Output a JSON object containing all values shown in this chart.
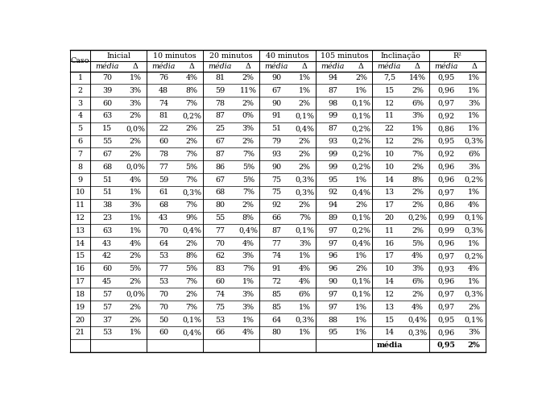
{
  "rows": [
    [
      "1",
      "70",
      "1%",
      "76",
      "4%",
      "81",
      "2%",
      "90",
      "1%",
      "94",
      "2%",
      "7,5",
      "14%",
      "0,95",
      "1%"
    ],
    [
      "2",
      "39",
      "3%",
      "48",
      "8%",
      "59",
      "11%",
      "67",
      "1%",
      "87",
      "1%",
      "15",
      "2%",
      "0,96",
      "1%"
    ],
    [
      "3",
      "60",
      "3%",
      "74",
      "7%",
      "78",
      "2%",
      "90",
      "2%",
      "98",
      "0,1%",
      "12",
      "6%",
      "0,97",
      "3%"
    ],
    [
      "4",
      "63",
      "2%",
      "81",
      "0,2%",
      "87",
      "0%",
      "91",
      "0,1%",
      "99",
      "0,1%",
      "11",
      "3%",
      "0,92",
      "1%"
    ],
    [
      "5",
      "15",
      "0,0%",
      "22",
      "2%",
      "25",
      "3%",
      "51",
      "0,4%",
      "87",
      "0,2%",
      "22",
      "1%",
      "0,86",
      "1%"
    ],
    [
      "6",
      "55",
      "2%",
      "60",
      "2%",
      "67",
      "2%",
      "79",
      "2%",
      "93",
      "0,2%",
      "12",
      "2%",
      "0,95",
      "0,3%"
    ],
    [
      "7",
      "67",
      "2%",
      "78",
      "7%",
      "87",
      "7%",
      "93",
      "2%",
      "99",
      "0,2%",
      "10",
      "7%",
      "0,92",
      "6%"
    ],
    [
      "8",
      "68",
      "0,0%",
      "77",
      "5%",
      "86",
      "5%",
      "90",
      "2%",
      "99",
      "0,2%",
      "10",
      "2%",
      "0,96",
      "3%"
    ],
    [
      "9",
      "51",
      "4%",
      "59",
      "7%",
      "67",
      "5%",
      "75",
      "0,3%",
      "95",
      "1%",
      "14",
      "8%",
      "0,96",
      "0,2%"
    ],
    [
      "10",
      "51",
      "1%",
      "61",
      "0,3%",
      "68",
      "7%",
      "75",
      "0,3%",
      "92",
      "0,4%",
      "13",
      "2%",
      "0,97",
      "1%"
    ],
    [
      "11",
      "38",
      "3%",
      "68",
      "7%",
      "80",
      "2%",
      "92",
      "2%",
      "94",
      "2%",
      "17",
      "2%",
      "0,86",
      "4%"
    ],
    [
      "12",
      "23",
      "1%",
      "43",
      "9%",
      "55",
      "8%",
      "66",
      "7%",
      "89",
      "0,1%",
      "20",
      "0,2%",
      "0,99",
      "0,1%"
    ],
    [
      "13",
      "63",
      "1%",
      "70",
      "0,4%",
      "77",
      "0,4%",
      "87",
      "0,1%",
      "97",
      "0,2%",
      "11",
      "2%",
      "0,99",
      "0,3%"
    ],
    [
      "14",
      "43",
      "4%",
      "64",
      "2%",
      "70",
      "4%",
      "77",
      "3%",
      "97",
      "0,4%",
      "16",
      "5%",
      "0,96",
      "1%"
    ],
    [
      "15",
      "42",
      "2%",
      "53",
      "8%",
      "62",
      "3%",
      "74",
      "1%",
      "96",
      "1%",
      "17",
      "4%",
      "0,97",
      "0,2%"
    ],
    [
      "16",
      "60",
      "5%",
      "77",
      "5%",
      "83",
      "7%",
      "91",
      "4%",
      "96",
      "2%",
      "10",
      "3%",
      "0,93",
      "4%"
    ],
    [
      "17",
      "45",
      "2%",
      "53",
      "7%",
      "60",
      "1%",
      "72",
      "4%",
      "90",
      "0,1%",
      "14",
      "6%",
      "0,96",
      "1%"
    ],
    [
      "18",
      "57",
      "0,0%",
      "70",
      "2%",
      "74",
      "3%",
      "85",
      "6%",
      "97",
      "0,1%",
      "12",
      "2%",
      "0,97",
      "0,3%"
    ],
    [
      "19",
      "57",
      "2%",
      "70",
      "7%",
      "75",
      "3%",
      "85",
      "1%",
      "97",
      "1%",
      "13",
      "4%",
      "0,97",
      "2%"
    ],
    [
      "20",
      "37",
      "2%",
      "50",
      "0,1%",
      "53",
      "1%",
      "64",
      "0,3%",
      "88",
      "1%",
      "15",
      "0,4%",
      "0,95",
      "0,1%"
    ],
    [
      "21",
      "53",
      "1%",
      "60",
      "0,4%",
      "66",
      "4%",
      "80",
      "1%",
      "95",
      "1%",
      "14",
      "0,3%",
      "0,96",
      "3%"
    ]
  ],
  "group_labels": [
    "Inicial",
    "10 minutos",
    "20 minutos",
    "40 minutos",
    "105 minutos",
    "Inclinação",
    "R²"
  ],
  "footer_media": "média",
  "footer_val1": "0,95",
  "footer_val2": "2%",
  "background_color": "#ffffff"
}
